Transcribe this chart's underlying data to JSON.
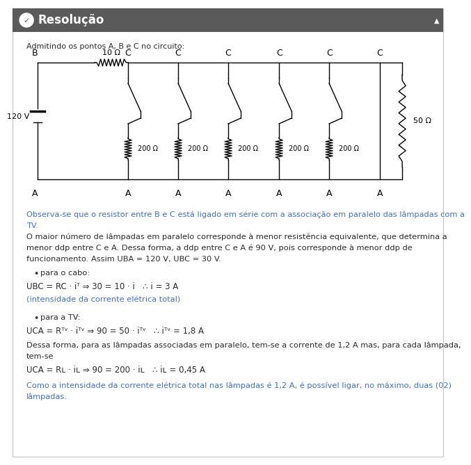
{
  "header_bg": "#5a5a5a",
  "header_text": "Resolução",
  "header_text_color": "#ffffff",
  "body_bg": "#ffffff",
  "border_color": "#cccccc",
  "intro_text": "Admitindo os pontos A, B e C no circuito:",
  "voltage_label": "120 V",
  "resistor_top_label": "10 Ω",
  "resistor_right_label": "50 Ω",
  "lamp_resistor_label": "200 Ω",
  "blue_text_1": "Observa-se que o resistor entre B e C está ligado em série com a associação em paralelo das lâmpadas com a TV.",
  "black_text_1a": "O maior número de lâmpadas em paralelo corresponde à menor resistência equivalente, que determina a",
  "black_text_1b": "menor ddp entre C e A. Dessa forma, a ddp entre C e A é 90 V, pois corresponde à menor ddp de",
  "black_text_1c": "funcionamento. Assim UBA = 120 V, UBC = 30 V.",
  "bullet1_label": "para o cabo:",
  "formula1": "UBC = RC · iᵀ ⇒ 30 = 10 · i   ∴ i = 3 A",
  "blue_text_2": "(intensidade da corrente elétrica total)",
  "bullet2_label": "para a TV:",
  "formula2": "UCA = Rᵀᵛ · iᵀᵛ ⇒ 90 = 50 · iᵀᵛ   ∴ iᵀᵛ = 1,8 A",
  "black_text_2a": "Dessa forma, para as lâmpadas associadas em paralelo, tem-se a corrente de 1,2 A mas, para cada lâmpada,",
  "black_text_2b": "tem-se",
  "formula3": "UCA = Rʟ · iʟ ⇒ 90 = 200 · iʟ   ∴ iʟ = 0,45 A",
  "blue_text_3a": "Como a intensidade da corrente elétrica total nas lâmpadas é 1,2 A, é possível ligar, no máximo, duas (02)",
  "blue_text_3b": "lâmpadas.",
  "text_color_blue": "#4472c4",
  "text_color_dark": "#2d2d2d"
}
